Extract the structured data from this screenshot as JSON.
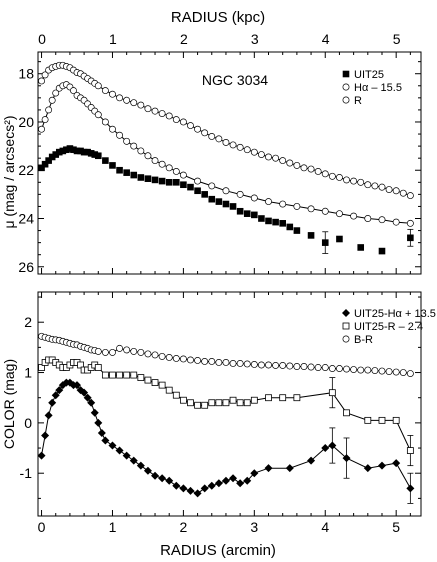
{
  "chart_data": [
    {
      "type": "line",
      "title": "NGC 3034",
      "top_axis_label": "RADIUS (kpc)",
      "top_axis_range": [
        0,
        5.4
      ],
      "top_ticks": [
        "0",
        "1",
        "2",
        "3",
        "4",
        "5"
      ],
      "ylabel": "μ (mag / arcsecs²)",
      "xlim": [
        -0.05,
        5.35
      ],
      "ylim": [
        26.3,
        17.1
      ],
      "y_inverted": true,
      "yticks": [
        "18",
        "20",
        "22",
        "24",
        "26"
      ],
      "xticks_visible": true,
      "legend_position": "top-right",
      "series": [
        {
          "name": "UIT25",
          "marker": "filled-square",
          "line": false,
          "x": [
            0.0,
            0.05,
            0.1,
            0.15,
            0.2,
            0.25,
            0.3,
            0.35,
            0.4,
            0.45,
            0.5,
            0.55,
            0.6,
            0.65,
            0.7,
            0.75,
            0.8,
            0.9,
            1.0,
            1.1,
            1.2,
            1.3,
            1.4,
            1.5,
            1.6,
            1.7,
            1.8,
            1.9,
            2.0,
            2.1,
            2.2,
            2.3,
            2.4,
            2.5,
            2.6,
            2.7,
            2.8,
            2.9,
            3.0,
            3.1,
            3.2,
            3.3,
            3.4,
            3.5,
            3.6,
            3.8,
            4.0,
            4.2,
            4.5,
            4.8,
            5.2
          ],
          "y": [
            21.9,
            21.75,
            21.6,
            21.45,
            21.35,
            21.25,
            21.2,
            21.15,
            21.1,
            21.15,
            21.2,
            21.2,
            21.25,
            21.25,
            21.3,
            21.35,
            21.4,
            21.6,
            21.8,
            22.0,
            22.1,
            22.2,
            22.3,
            22.35,
            22.4,
            22.45,
            22.5,
            22.5,
            22.6,
            22.7,
            22.85,
            23.0,
            23.2,
            23.3,
            23.4,
            23.5,
            23.7,
            23.8,
            23.85,
            24.0,
            24.1,
            24.15,
            24.2,
            24.35,
            24.5,
            24.7,
            25.0,
            24.85,
            25.2,
            25.35,
            24.8
          ],
          "error_bars_y": {
            "4.0": 0.45,
            "5.2": 0.35
          }
        },
        {
          "name": "Hα – 15.5",
          "marker": "open-circle",
          "line": true,
          "x": [
            0.0,
            0.05,
            0.1,
            0.15,
            0.2,
            0.25,
            0.3,
            0.35,
            0.4,
            0.45,
            0.5,
            0.55,
            0.6,
            0.65,
            0.7,
            0.75,
            0.8,
            0.9,
            1.0,
            1.1,
            1.2,
            1.3,
            1.4,
            1.5,
            1.6,
            1.7,
            1.8,
            1.9,
            2.0,
            2.2,
            2.4,
            2.6,
            2.8,
            3.0,
            3.2,
            3.4,
            3.6,
            3.8,
            4.0,
            4.2,
            4.4,
            4.6,
            4.8,
            5.0,
            5.2
          ],
          "y": [
            20.3,
            19.9,
            19.5,
            19.1,
            18.8,
            18.6,
            18.5,
            18.45,
            18.55,
            18.7,
            18.9,
            19.0,
            19.1,
            19.25,
            19.4,
            19.55,
            19.7,
            20.0,
            20.3,
            20.55,
            20.8,
            21.0,
            21.2,
            21.4,
            21.6,
            21.75,
            21.9,
            22.05,
            22.2,
            22.45,
            22.65,
            22.85,
            23.0,
            23.15,
            23.3,
            23.4,
            23.5,
            23.6,
            23.7,
            23.8,
            23.9,
            24.0,
            24.05,
            24.15,
            24.2
          ]
        },
        {
          "name": "R",
          "marker": "open-circle",
          "line": true,
          "x": [
            0.0,
            0.05,
            0.1,
            0.15,
            0.2,
            0.25,
            0.3,
            0.35,
            0.4,
            0.45,
            0.5,
            0.55,
            0.6,
            0.65,
            0.7,
            0.75,
            0.8,
            0.9,
            1.0,
            1.1,
            1.2,
            1.3,
            1.4,
            1.5,
            1.6,
            1.7,
            1.8,
            1.9,
            2.0,
            2.1,
            2.2,
            2.3,
            2.4,
            2.5,
            2.6,
            2.7,
            2.8,
            2.9,
            3.0,
            3.1,
            3.2,
            3.3,
            3.4,
            3.5,
            3.6,
            3.7,
            3.8,
            3.9,
            4.0,
            4.1,
            4.2,
            4.3,
            4.4,
            4.5,
            4.6,
            4.7,
            4.8,
            4.9,
            5.0,
            5.1,
            5.2
          ],
          "y": [
            18.3,
            18.05,
            17.85,
            17.75,
            17.7,
            17.65,
            17.65,
            17.7,
            17.75,
            17.85,
            17.95,
            18.0,
            18.1,
            18.2,
            18.3,
            18.4,
            18.5,
            18.7,
            18.85,
            19.0,
            19.1,
            19.2,
            19.3,
            19.45,
            19.55,
            19.65,
            19.75,
            19.9,
            20.0,
            20.15,
            20.3,
            20.45,
            20.6,
            20.7,
            20.85,
            20.95,
            21.05,
            21.15,
            21.25,
            21.35,
            21.45,
            21.5,
            21.6,
            21.7,
            21.8,
            21.9,
            21.95,
            22.05,
            22.15,
            22.25,
            22.3,
            22.4,
            22.45,
            22.5,
            22.6,
            22.65,
            22.7,
            22.8,
            22.85,
            22.95,
            23.05
          ]
        }
      ]
    },
    {
      "type": "line",
      "xlabel": "RADIUS (arcmin)",
      "ylabel": "COLOR (mag)",
      "xlim": [
        -0.05,
        5.35
      ],
      "ylim": [
        -1.85,
        2.6
      ],
      "xticks": [
        "0",
        "1",
        "2",
        "3",
        "4",
        "5"
      ],
      "yticks": [
        "-1",
        "0",
        "1",
        "2"
      ],
      "legend_position": "top-right",
      "series": [
        {
          "name": "UIT25-Hα + 13.5",
          "marker": "filled-diamond",
          "line": true,
          "x": [
            0.0,
            0.05,
            0.1,
            0.15,
            0.2,
            0.25,
            0.3,
            0.35,
            0.4,
            0.45,
            0.5,
            0.55,
            0.6,
            0.65,
            0.7,
            0.75,
            0.8,
            0.85,
            0.9,
            1.0,
            1.1,
            1.2,
            1.3,
            1.4,
            1.5,
            1.6,
            1.7,
            1.8,
            1.9,
            2.0,
            2.1,
            2.2,
            2.3,
            2.4,
            2.5,
            2.6,
            2.7,
            2.8,
            2.9,
            3.0,
            3.2,
            3.5,
            3.8,
            4.0,
            4.1,
            4.3,
            4.6,
            4.8,
            5.0,
            5.2
          ],
          "y": [
            -0.65,
            -0.25,
            0.15,
            0.4,
            0.55,
            0.65,
            0.75,
            0.8,
            0.8,
            0.75,
            0.75,
            0.65,
            0.6,
            0.5,
            0.4,
            0.2,
            0.0,
            -0.2,
            -0.35,
            -0.45,
            -0.55,
            -0.65,
            -0.75,
            -0.85,
            -0.95,
            -1.05,
            -1.1,
            -1.15,
            -1.25,
            -1.3,
            -1.35,
            -1.4,
            -1.3,
            -1.25,
            -1.2,
            -1.15,
            -1.1,
            -1.2,
            -1.15,
            -1.0,
            -0.9,
            -0.9,
            -0.75,
            -0.5,
            -0.45,
            -0.7,
            -0.9,
            -0.85,
            -0.8,
            -1.3
          ],
          "error_bars_y": {
            "4.1": 0.35,
            "4.3": 0.4,
            "5.2": 0.3
          }
        },
        {
          "name": "UIT25-R – 2.4",
          "marker": "open-square",
          "line": true,
          "x": [
            0.0,
            0.05,
            0.1,
            0.15,
            0.2,
            0.25,
            0.3,
            0.35,
            0.4,
            0.45,
            0.5,
            0.55,
            0.6,
            0.65,
            0.7,
            0.75,
            0.8,
            0.9,
            1.0,
            1.1,
            1.2,
            1.3,
            1.4,
            1.5,
            1.6,
            1.7,
            1.8,
            1.9,
            2.0,
            2.1,
            2.2,
            2.3,
            2.4,
            2.5,
            2.6,
            2.7,
            2.8,
            2.9,
            3.0,
            3.2,
            3.4,
            3.6,
            4.1,
            4.3,
            4.6,
            4.8,
            5.0,
            5.2
          ],
          "y": [
            1.1,
            1.2,
            1.25,
            1.25,
            1.2,
            1.15,
            1.1,
            1.1,
            1.15,
            1.2,
            1.2,
            1.15,
            1.05,
            1.05,
            1.1,
            1.15,
            1.1,
            0.95,
            0.95,
            0.95,
            0.95,
            0.95,
            0.9,
            0.85,
            0.8,
            0.75,
            0.65,
            0.55,
            0.45,
            0.4,
            0.35,
            0.35,
            0.4,
            0.4,
            0.4,
            0.45,
            0.4,
            0.4,
            0.45,
            0.5,
            0.5,
            0.5,
            0.6,
            0.2,
            0.05,
            0.05,
            0.05,
            -0.55
          ],
          "error_bars_y": {
            "4.1": 0.3,
            "5.2": 0.3
          }
        },
        {
          "name": "B-R",
          "marker": "open-circle",
          "line": true,
          "x": [
            0.0,
            0.05,
            0.1,
            0.15,
            0.2,
            0.25,
            0.3,
            0.35,
            0.4,
            0.45,
            0.5,
            0.55,
            0.6,
            0.65,
            0.7,
            0.75,
            0.8,
            0.9,
            1.0,
            1.1,
            1.2,
            1.3,
            1.4,
            1.5,
            1.6,
            1.7,
            1.8,
            1.9,
            2.0,
            2.1,
            2.2,
            2.3,
            2.4,
            2.5,
            2.6,
            2.7,
            2.8,
            2.9,
            3.0,
            3.1,
            3.2,
            3.3,
            3.4,
            3.5,
            3.6,
            3.7,
            3.8,
            3.9,
            4.0,
            4.1,
            4.2,
            4.3,
            4.4,
            4.5,
            4.6,
            4.7,
            4.8,
            4.9,
            5.0,
            5.1,
            5.2
          ],
          "y": [
            1.72,
            1.7,
            1.68,
            1.66,
            1.65,
            1.64,
            1.62,
            1.6,
            1.58,
            1.56,
            1.55,
            1.52,
            1.5,
            1.48,
            1.45,
            1.44,
            1.42,
            1.4,
            1.4,
            1.48,
            1.45,
            1.42,
            1.4,
            1.37,
            1.35,
            1.32,
            1.3,
            1.28,
            1.27,
            1.25,
            1.24,
            1.22,
            1.22,
            1.2,
            1.2,
            1.18,
            1.18,
            1.17,
            1.16,
            1.15,
            1.15,
            1.14,
            1.14,
            1.13,
            1.12,
            1.12,
            1.11,
            1.1,
            1.1,
            1.08,
            1.08,
            1.07,
            1.06,
            1.05,
            1.05,
            1.04,
            1.03,
            1.02,
            1.01,
            1.0,
            0.98
          ]
        }
      ]
    }
  ]
}
